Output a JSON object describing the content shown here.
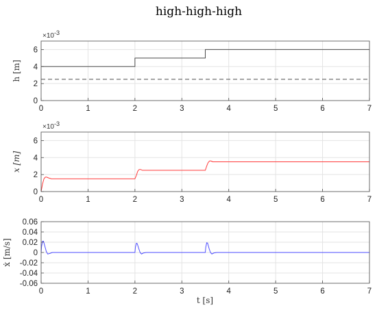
{
  "title": "high-high-high",
  "xlabel": "t [s]",
  "chart_data": [
    {
      "type": "line",
      "ylabel": "h [m]",
      "ylabel_italic": false,
      "ylim": [
        0,
        0.007
      ],
      "yticks": [
        0,
        0.002,
        0.004,
        0.006
      ],
      "ytick_labels": [
        "0",
        "2",
        "4",
        "6"
      ],
      "multiplier": "×10",
      "multiplier_exp": "-3",
      "xlim": [
        0,
        7
      ],
      "xticks": [
        0,
        1,
        2,
        3,
        4,
        5,
        6,
        7
      ],
      "xtick_labels": [
        "0",
        "1",
        "2",
        "3",
        "4",
        "5",
        "6",
        "7"
      ],
      "grid": true,
      "series": [
        {
          "color": "#4a4a4a",
          "dash": false,
          "x": [
            0,
            2,
            2,
            3.5,
            3.5,
            7
          ],
          "y": [
            0.004,
            0.004,
            0.005,
            0.005,
            0.006,
            0.006
          ]
        },
        {
          "color": "#4a4a4a",
          "dash": true,
          "x": [
            0,
            7
          ],
          "y": [
            0.0025,
            0.0025
          ]
        }
      ]
    },
    {
      "type": "line",
      "ylabel": "x [m]",
      "ylabel_italic": true,
      "ylim": [
        0,
        0.007
      ],
      "yticks": [
        0,
        0.002,
        0.004,
        0.006
      ],
      "ytick_labels": [
        "0",
        "2",
        "4",
        "6"
      ],
      "multiplier": "×10",
      "multiplier_exp": "-3",
      "xlim": [
        0,
        7
      ],
      "xticks": [
        0,
        1,
        2,
        3,
        4,
        5,
        6,
        7
      ],
      "xtick_labels": [
        "0",
        "1",
        "2",
        "3",
        "4",
        "5",
        "6",
        "7"
      ],
      "grid": true,
      "series": [
        {
          "color": "#ff3b3b",
          "dash": false,
          "x": [
            0,
            0.03,
            0.06,
            0.09,
            0.12,
            0.16,
            0.22,
            0.3,
            2.0,
            2.03,
            2.06,
            2.09,
            2.12,
            2.16,
            2.22,
            2.3,
            3.5,
            3.53,
            3.56,
            3.59,
            3.62,
            3.66,
            3.72,
            3.8,
            7
          ],
          "y": [
            0,
            0.0009,
            0.0015,
            0.0017,
            0.0017,
            0.0016,
            0.0015,
            0.0015,
            0.0015,
            0.0019,
            0.0024,
            0.0026,
            0.0026,
            0.0025,
            0.0025,
            0.0025,
            0.0025,
            0.003,
            0.0034,
            0.0036,
            0.0036,
            0.0035,
            0.0035,
            0.0035,
            0.0035
          ]
        }
      ]
    },
    {
      "type": "line",
      "ylabel": "ẋ [m/s]",
      "ylabel_italic": false,
      "ylim": [
        -0.06,
        0.06
      ],
      "yticks": [
        -0.06,
        -0.04,
        -0.02,
        0,
        0.02,
        0.04,
        0.06
      ],
      "ytick_labels": [
        "-0.06",
        "-0.04",
        "-0.02",
        "0",
        "0.02",
        "0.04",
        "0.06"
      ],
      "multiplier": "",
      "multiplier_exp": "",
      "xlim": [
        0,
        7
      ],
      "xticks": [
        0,
        1,
        2,
        3,
        4,
        5,
        6,
        7
      ],
      "xtick_labels": [
        "0",
        "1",
        "2",
        "3",
        "4",
        "5",
        "6",
        "7"
      ],
      "grid": true,
      "series": [
        {
          "color": "#4d4dff",
          "dash": false,
          "x": [
            0,
            0.01,
            0.03,
            0.05,
            0.08,
            0.11,
            0.14,
            0.18,
            0.24,
            0.3,
            2.0,
            2.01,
            2.03,
            2.05,
            2.08,
            2.11,
            2.14,
            2.18,
            2.24,
            2.3,
            3.5,
            3.51,
            3.53,
            3.55,
            3.58,
            3.61,
            3.64,
            3.68,
            3.74,
            3.8,
            7
          ],
          "y": [
            0.0,
            0.012,
            0.022,
            0.022,
            0.012,
            0.002,
            -0.003,
            -0.002,
            0.0,
            0.0,
            0.0,
            0.01,
            0.018,
            0.017,
            0.008,
            0.0,
            -0.003,
            -0.001,
            0.0,
            0.0,
            0.0,
            0.01,
            0.019,
            0.018,
            0.008,
            0.0,
            -0.003,
            -0.001,
            0.0,
            0.0,
            0.0
          ]
        }
      ]
    }
  ]
}
